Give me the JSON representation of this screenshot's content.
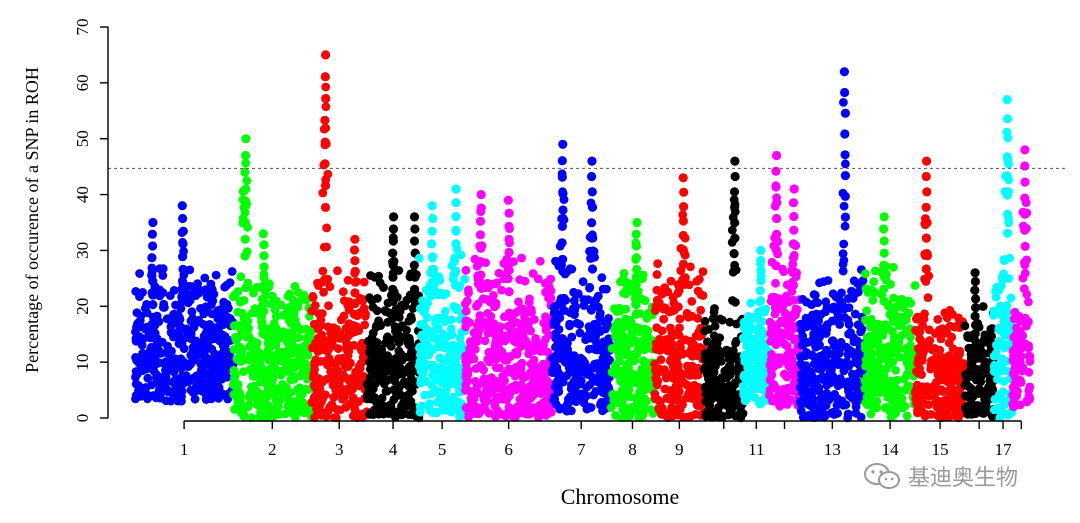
{
  "chart_data": {
    "type": "scatter",
    "title": "",
    "xlabel": "Chromosome",
    "ylabel": "Percentage of occurence of a SNP in ROH",
    "ylim": [
      0,
      70
    ],
    "yticks": [
      0,
      10,
      20,
      30,
      40,
      50,
      60,
      70
    ],
    "threshold": 44.7,
    "colors": [
      "#0000ff",
      "#00ff00",
      "#ff0000",
      "#000000",
      "#00ffff",
      "#ff00ff"
    ],
    "xtick_labels": [
      "1",
      "2",
      "3",
      "4",
      "5",
      "6",
      "7",
      "8",
      "9",
      "11",
      "13",
      "14",
      "15",
      "17"
    ],
    "chromosomes": [
      {
        "chr": 1,
        "label": "1",
        "start": 0,
        "end": 113,
        "color": "#0000ff",
        "base": [
          3,
          35
        ],
        "peaks": [
          [
            20,
            35
          ],
          [
            55,
            38
          ]
        ]
      },
      {
        "chr": 2,
        "label": "2",
        "start": 113,
        "end": 203,
        "color": "#00ff00",
        "base": [
          0,
          34
        ],
        "peaks": [
          [
            14,
            50
          ],
          [
            35,
            33
          ]
        ]
      },
      {
        "chr": 3,
        "label": "3",
        "start": 203,
        "end": 267,
        "color": "#ff0000",
        "base": [
          0,
          36
        ],
        "peaks": [
          [
            16,
            65
          ],
          [
            50,
            32
          ]
        ]
      },
      {
        "chr": 4,
        "label": "4",
        "start": 267,
        "end": 327,
        "color": "#000000",
        "base": [
          0,
          36
        ],
        "peaks": [
          [
            30,
            36
          ],
          [
            55,
            36
          ]
        ]
      },
      {
        "chr": 5,
        "label": "5",
        "start": 327,
        "end": 380,
        "color": "#00ffff",
        "base": [
          0,
          38
        ],
        "peaks": [
          [
            15,
            38
          ],
          [
            42,
            41
          ]
        ]
      },
      {
        "chr": 6,
        "label": "6",
        "start": 380,
        "end": 480,
        "color": "#ff00ff",
        "base": [
          0,
          40
        ],
        "peaks": [
          [
            18,
            40
          ],
          [
            50,
            39
          ]
        ]
      },
      {
        "chr": 7,
        "label": "7",
        "start": 480,
        "end": 547,
        "color": "#0000ff",
        "base": [
          1,
          38
        ],
        "peaks": [
          [
            12,
            49
          ],
          [
            46,
            46
          ]
        ]
      },
      {
        "chr": 8,
        "label": "8",
        "start": 547,
        "end": 598,
        "color": "#00ff00",
        "base": [
          0,
          35
        ],
        "peaks": [
          [
            30,
            35
          ]
        ]
      },
      {
        "chr": 9,
        "label": "9",
        "start": 598,
        "end": 655,
        "color": "#ff0000",
        "base": [
          0,
          35
        ],
        "peaks": [
          [
            33,
            43
          ]
        ]
      },
      {
        "chr": 10,
        "label": "",
        "start": 655,
        "end": 700,
        "color": "#000000",
        "base": [
          0,
          26
        ],
        "peaks": [
          [
            35,
            46
          ]
        ]
      },
      {
        "chr": 11,
        "label": "11",
        "start": 700,
        "end": 730,
        "color": "#00ffff",
        "base": [
          2,
          28
        ],
        "peaks": [
          [
            20,
            30
          ]
        ]
      },
      {
        "chr": 12,
        "label": "",
        "start": 730,
        "end": 765,
        "color": "#ff00ff",
        "base": [
          2,
          38
        ],
        "peaks": [
          [
            8,
            47
          ],
          [
            28,
            41
          ]
        ]
      },
      {
        "chr": 13,
        "label": "13",
        "start": 765,
        "end": 840,
        "color": "#0000ff",
        "base": [
          0,
          37
        ],
        "peaks": [
          [
            52,
            62
          ]
        ]
      },
      {
        "chr": 14,
        "label": "14",
        "start": 840,
        "end": 898,
        "color": "#00ff00",
        "base": [
          0,
          36
        ],
        "peaks": [
          [
            22,
            36
          ]
        ]
      },
      {
        "chr": 15,
        "label": "15",
        "start": 898,
        "end": 955,
        "color": "#ff0000",
        "base": [
          0,
          28
        ],
        "peaks": [
          [
            13,
            46
          ]
        ]
      },
      {
        "chr": 16,
        "label": "",
        "start": 955,
        "end": 988,
        "color": "#000000",
        "base": [
          0,
          26
        ],
        "peaks": [
          [
            12,
            26
          ]
        ]
      },
      {
        "chr": 17,
        "label": "17",
        "start": 988,
        "end": 1010,
        "color": "#00ffff",
        "base": [
          0,
          44
        ],
        "peaks": [
          [
            16,
            57
          ]
        ]
      },
      {
        "chr": 18,
        "label": "",
        "start": 1010,
        "end": 1030,
        "color": "#ff00ff",
        "base": [
          2,
          30
        ],
        "peaks": [
          [
            14,
            48
          ]
        ]
      }
    ]
  },
  "watermark": {
    "text": "基迪奥生物",
    "icon": "wechat-icon"
  }
}
